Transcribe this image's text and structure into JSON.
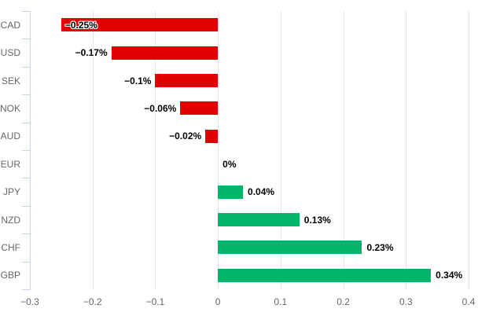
{
  "chart_data": {
    "type": "bar",
    "orientation": "horizontal",
    "title": "",
    "xlabel": "",
    "ylabel": "",
    "categories": [
      "CAD",
      "USD",
      "SEK",
      "NOK",
      "AUD",
      "EUR",
      "JPY",
      "NZD",
      "CHF",
      "GBP"
    ],
    "values": [
      -0.25,
      -0.17,
      -0.1,
      -0.06,
      -0.02,
      0,
      0.04,
      0.13,
      0.23,
      0.34
    ],
    "data_labels": [
      "−0.25%",
      "−0.17%",
      "−0.1%",
      "−0.06%",
      "−0.02%",
      "0%",
      "0.04%",
      "0.13%",
      "0.23%",
      "0.34%"
    ],
    "x_ticks": {
      "values": [
        -0.3,
        -0.2,
        -0.1,
        0,
        0.1,
        0.2,
        0.3,
        0.4
      ],
      "labels": [
        "−0.3",
        "−0.2",
        "−0.1",
        "0",
        "0.1",
        "0.2",
        "0.3",
        "0.4"
      ]
    },
    "xlim": [
      -0.3,
      0.4
    ],
    "grid": true,
    "legend": false,
    "colors": {
      "negative": "#e00000",
      "positive": "#00b46a",
      "grid": "#e6e6e6",
      "axis": "#ccd6eb",
      "tick_label": "#666666",
      "data_label": "#000000",
      "background": "#ffffff"
    }
  }
}
